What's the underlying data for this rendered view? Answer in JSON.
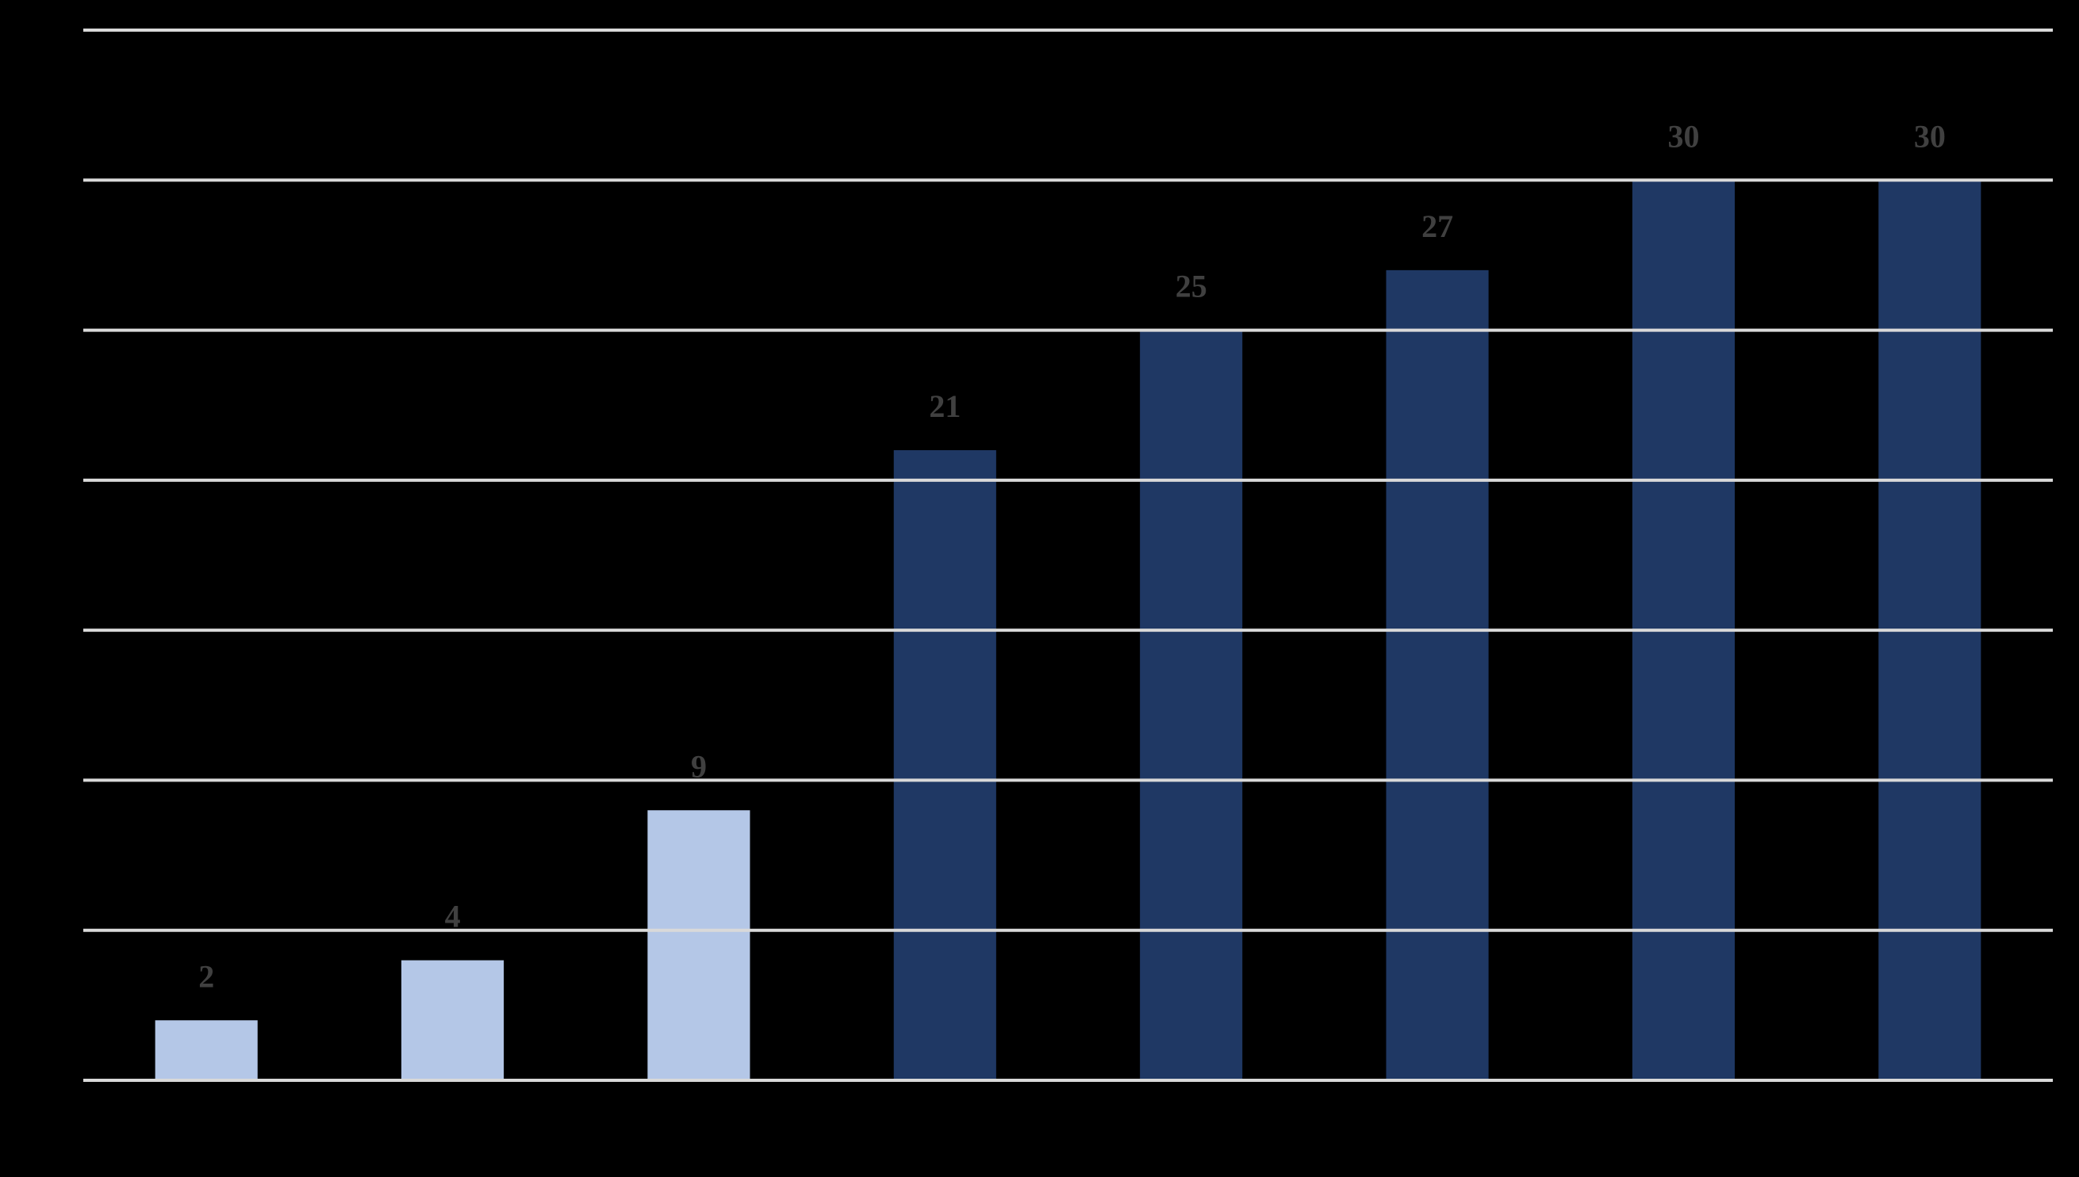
{
  "chart_data": {
    "type": "bar",
    "values": [
      2,
      4,
      9,
      21,
      25,
      27,
      30,
      30
    ],
    "colors": [
      "#b4c7e7",
      "#b4c7e7",
      "#b4c7e7",
      "#1f3864",
      "#1f3864",
      "#1f3864",
      "#1f3864",
      "#1f3864"
    ],
    "ylim": [
      0,
      35
    ],
    "yticks": [
      0,
      5,
      10,
      15,
      20,
      25,
      30,
      35
    ],
    "grid": true
  }
}
